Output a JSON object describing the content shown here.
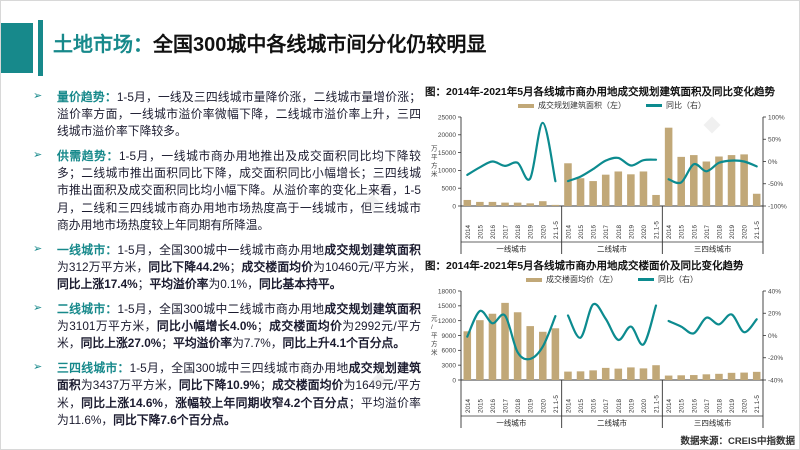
{
  "header": {
    "title_accent": "土地市场：",
    "title_main": "全国300城中各线城市间分化仍较明显"
  },
  "bullet_marker": "➢",
  "bullets": [
    {
      "label": "量价趋势：",
      "segments": [
        {
          "t": "1-5月，一线及三四线城市量降价涨，二线城市量增价涨；溢价率方面，一线城市溢价率微幅下降，二线城市溢价率上升，三四线城市溢价率下降较多。",
          "b": 0
        }
      ]
    },
    {
      "label": "供需趋势：",
      "segments": [
        {
          "t": "1-5月，一线城市商办用地推出及成交面积同比均下降较多；二线城市推出面积同比下降，成交面积同比小幅增长；三四线城市推出面积及成交面积同比均小幅下降。从溢价率的变化上来看，1-5月，二线和三四线城市商办用地市场热度高于一线城市，但三线城市商办用地市场热度较上年同期有所降温。",
          "b": 0
        }
      ]
    },
    {
      "label": "一线城市：",
      "segments": [
        {
          "t": "1-5月，全国300城中一线城市商办用地",
          "b": 0
        },
        {
          "t": "成交规划建筑面积",
          "b": 1
        },
        {
          "t": "为312万平方米，",
          "b": 0
        },
        {
          "t": "同比下降44.2%",
          "b": 1
        },
        {
          "t": "；",
          "b": 0
        },
        {
          "t": "成交楼面均价",
          "b": 1
        },
        {
          "t": "为10460元/平方米，",
          "b": 0
        },
        {
          "t": "同比上涨17.4%",
          "b": 1
        },
        {
          "t": "；",
          "b": 0
        },
        {
          "t": "平均溢价率",
          "b": 1
        },
        {
          "t": "为0.1%，",
          "b": 0
        },
        {
          "t": "同比基本持平。",
          "b": 1
        }
      ]
    },
    {
      "label": "二线城市：",
      "segments": [
        {
          "t": "1-5月，全国300城中二线城市商办用地",
          "b": 0
        },
        {
          "t": "成交规划建筑面积",
          "b": 1
        },
        {
          "t": "为3101万平方米，",
          "b": 0
        },
        {
          "t": "同比小幅增长4.0%",
          "b": 1
        },
        {
          "t": "；",
          "b": 0
        },
        {
          "t": "成交楼面均价",
          "b": 1
        },
        {
          "t": "为2992元/平方米，",
          "b": 0
        },
        {
          "t": "同比上涨27.0%",
          "b": 1
        },
        {
          "t": "；",
          "b": 0
        },
        {
          "t": "平均溢价率",
          "b": 1
        },
        {
          "t": "为7.7%，",
          "b": 0
        },
        {
          "t": "同比上升4.1个百分点。",
          "b": 1
        }
      ]
    },
    {
      "label": "三四线城市：",
      "segments": [
        {
          "t": "1-5月，全国300城中三四线城市商办用地",
          "b": 0
        },
        {
          "t": "成交规划建筑面积",
          "b": 1
        },
        {
          "t": "为3437万平方米，",
          "b": 0
        },
        {
          "t": "同比下降10.9%",
          "b": 1
        },
        {
          "t": "；",
          "b": 0
        },
        {
          "t": "成交楼面均价",
          "b": 1
        },
        {
          "t": "为1649元/平方米，",
          "b": 0
        },
        {
          "t": "同比上涨14.6%",
          "b": 1
        },
        {
          "t": "，",
          "b": 0
        },
        {
          "t": "涨幅较上年同期收窄4.2个百分点",
          "b": 1
        },
        {
          "t": "；平均溢价率为11.6%，",
          "b": 0
        },
        {
          "t": "同比下降7.6个百分点。",
          "b": 1
        }
      ]
    }
  ],
  "colors": {
    "accent_teal": "#17898B",
    "bar_tan": "#C1A878",
    "line_teal": "#0C8B8F",
    "axis_gray": "#333333"
  },
  "chart_data": [
    {
      "type": "bar",
      "title": "图：2014年-2021年5月各线城市商办用地成交规划建筑面积及同比变化趋势",
      "legend": [
        "成交规划建筑面积（左）",
        "同比（右）"
      ],
      "ylabel_left": "万平方米",
      "left_axis": {
        "min": 0,
        "max": 25000,
        "step": 5000
      },
      "right_axis": {
        "min": -100,
        "max": 100,
        "step": 50,
        "suffix": "%"
      },
      "categories": [
        "2014",
        "2015",
        "2016",
        "2017",
        "2018",
        "2019",
        "2020",
        "21.1-5"
      ],
      "grid": false,
      "legend_position": "top",
      "groups": [
        {
          "name": "一线城市",
          "bars": [
            1700,
            1150,
            1150,
            950,
            950,
            750,
            1350,
            312
          ],
          "line": [
            -30,
            -13,
            0,
            -10,
            -3,
            -38,
            87,
            -44.2
          ]
        },
        {
          "name": "二线城市",
          "bars": [
            12000,
            7800,
            7000,
            8800,
            9700,
            8900,
            9700,
            3101
          ],
          "line": [
            -44,
            -34,
            -17,
            2,
            8,
            -9,
            3,
            4
          ]
        },
        {
          "name": "三四线城市",
          "bars": [
            22000,
            13800,
            14300,
            12500,
            13900,
            14300,
            14500,
            3437
          ],
          "line": [
            -40,
            -47,
            -6,
            -22,
            -3,
            2,
            0,
            -10.9
          ]
        }
      ],
      "series_note": "bars=成交规划建筑面积(万平方米,左轴), line=同比(%,右轴)"
    },
    {
      "type": "bar",
      "title": "图：2014年-2021年5月各线城市商办用地成交楼面价及同比变化趋势",
      "legend": [
        "成交楼面均价（左）",
        "同比（右）"
      ],
      "ylabel_left": "元/平方米",
      "left_axis": {
        "min": 0,
        "max": 18000,
        "step": 3000
      },
      "right_axis": {
        "min": -40,
        "max": 40,
        "step": 20,
        "suffix": "%"
      },
      "categories": [
        "2014",
        "2015",
        "2016",
        "2017",
        "2018",
        "2019",
        "2020",
        "21.1-5"
      ],
      "grid": false,
      "legend_position": "top",
      "groups": [
        {
          "name": "一线城市",
          "bars": [
            9850,
            12100,
            13400,
            15600,
            13700,
            10900,
            9750,
            10460
          ],
          "line": [
            -1,
            22,
            11,
            18,
            -15,
            -21,
            -10,
            17.4
          ]
        },
        {
          "name": "二线城市",
          "bars": [
            1700,
            1750,
            1950,
            2450,
            2300,
            2550,
            2350,
            2992
          ],
          "line": [
            18,
            -2,
            28,
            15,
            -4,
            8,
            -8,
            27
          ]
        },
        {
          "name": "三四线城市",
          "bars": [
            900,
            950,
            1000,
            1150,
            1250,
            1450,
            1500,
            1649
          ],
          "line": [
            13,
            8,
            2,
            16,
            10,
            19,
            3,
            14.6
          ]
        }
      ],
      "series_note": "bars=成交楼面均价(元/平方米,左轴), line=同比(%,右轴)"
    }
  ],
  "footer": {
    "source": "数据来源：CREIS中指数据"
  }
}
